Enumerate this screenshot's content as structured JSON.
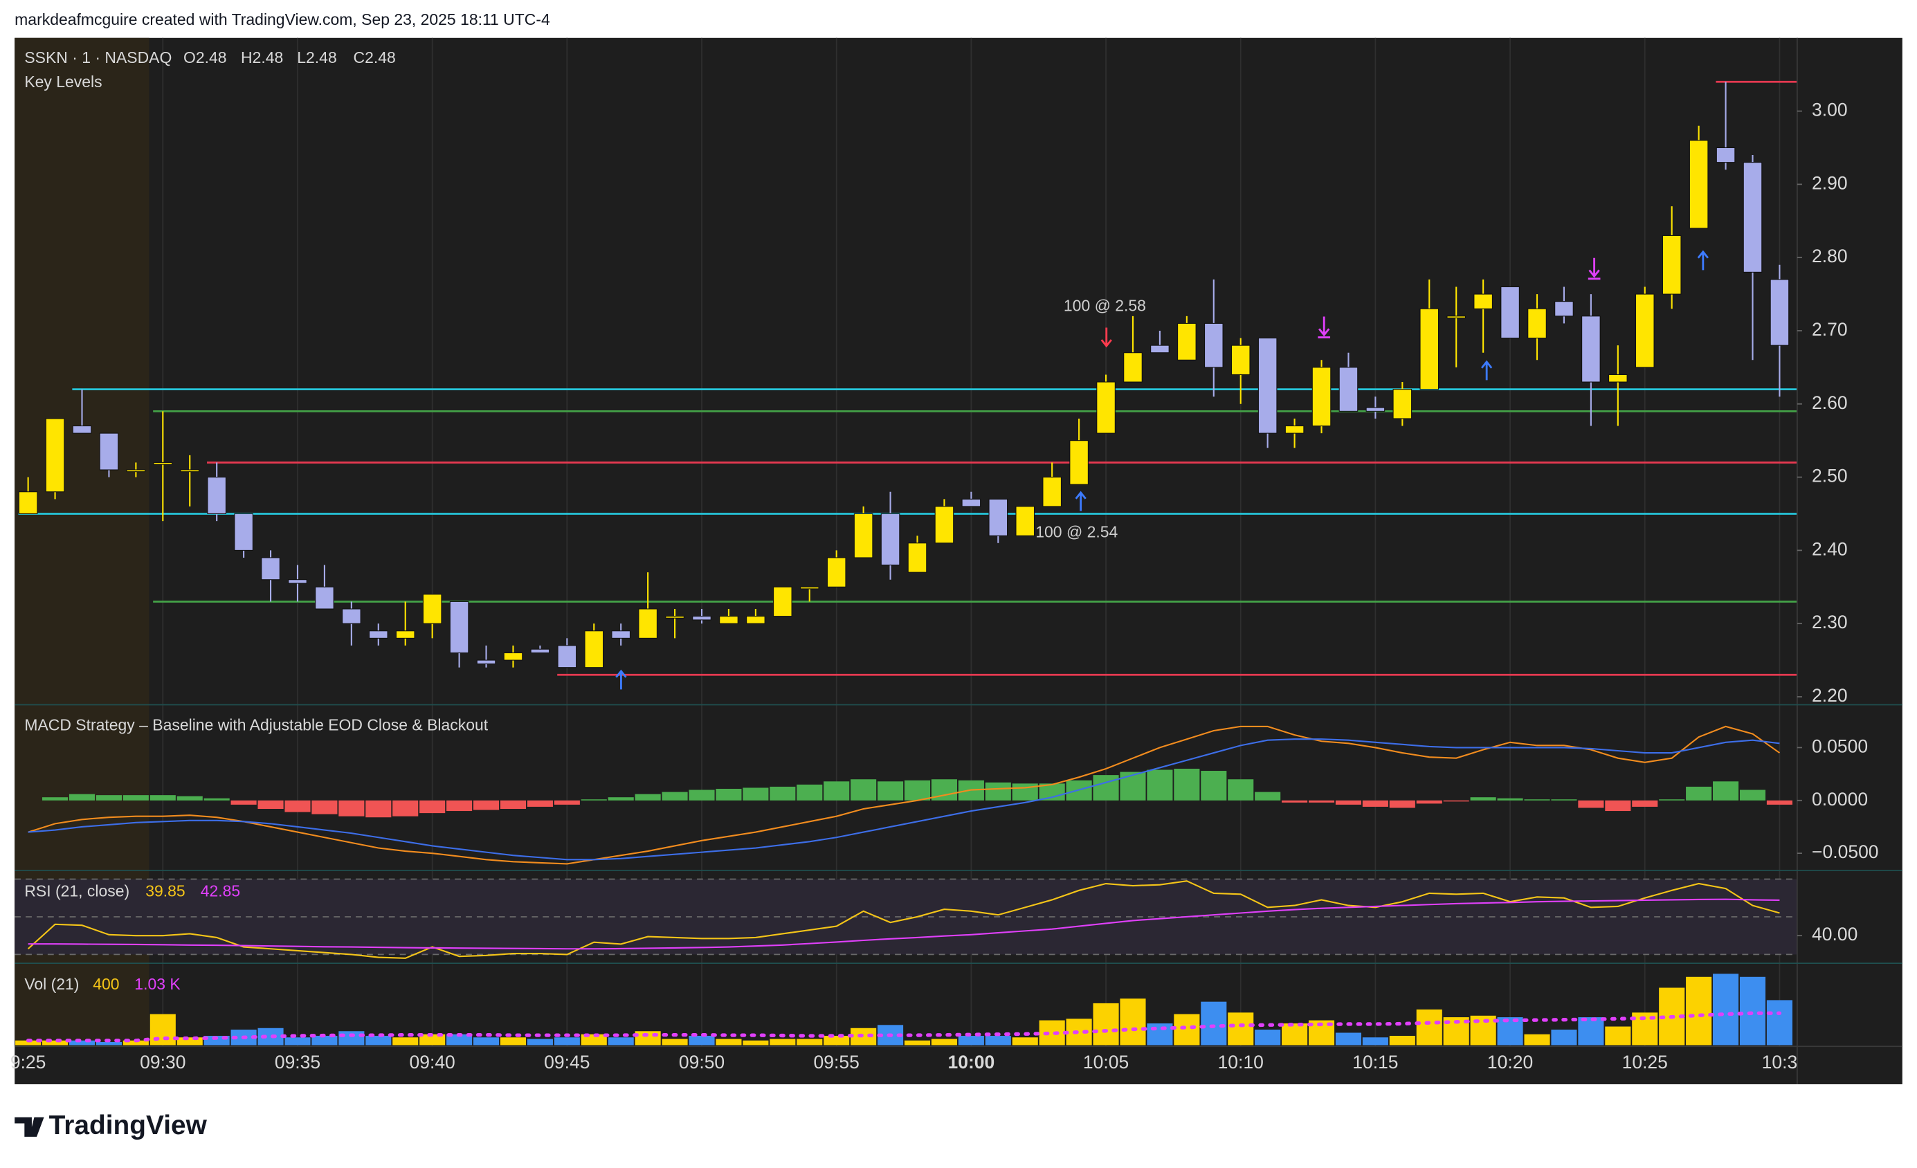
{
  "header": {
    "title": "markdeafmcguire created with TradingView.com, Sep 23, 2025 18:11 UTC-4"
  },
  "brand": "TradingView",
  "chart_data": [
    {
      "type": "candlestick",
      "title": "SSKN · 1 · NASDAQ",
      "legend": [
        "O2.48",
        "H2.48",
        "L2.48",
        "C2.48"
      ],
      "subtitle": "Key Levels",
      "categories": [
        "9:25",
        null,
        null,
        null,
        null,
        "09:30",
        null,
        null,
        null,
        null,
        "09:35",
        null,
        null,
        null,
        null,
        "09:40",
        null,
        null,
        null,
        null,
        "09:45",
        null,
        null,
        null,
        null,
        "09:50",
        null,
        null,
        null,
        null,
        "09:55",
        null,
        null,
        null,
        null,
        "10:00",
        null,
        null,
        null,
        null,
        "10:05",
        null,
        null,
        null,
        null,
        "10:10",
        null,
        null,
        null,
        null,
        "10:15",
        null,
        null,
        null,
        null,
        "10:20",
        null,
        null,
        null,
        null,
        "10:25",
        null,
        null,
        null,
        null,
        "10:3"
      ],
      "ohlc": [
        [
          2.45,
          2.5,
          2.45,
          2.48
        ],
        [
          2.48,
          2.58,
          2.47,
          2.58
        ],
        [
          2.57,
          2.62,
          2.56,
          2.56
        ],
        [
          2.56,
          2.56,
          2.5,
          2.51
        ],
        [
          2.51,
          2.52,
          2.5,
          2.51
        ],
        [
          2.52,
          2.59,
          2.44,
          2.52
        ],
        [
          2.51,
          2.53,
          2.46,
          2.51
        ],
        [
          2.5,
          2.52,
          2.44,
          2.45
        ],
        [
          2.45,
          2.45,
          2.39,
          2.4
        ],
        [
          2.39,
          2.4,
          2.33,
          2.36
        ],
        [
          2.36,
          2.38,
          2.33,
          2.355
        ],
        [
          2.35,
          2.38,
          2.32,
          2.32
        ],
        [
          2.32,
          2.33,
          2.27,
          2.3
        ],
        [
          2.29,
          2.3,
          2.27,
          2.28
        ],
        [
          2.28,
          2.33,
          2.27,
          2.29
        ],
        [
          2.3,
          2.34,
          2.28,
          2.34
        ],
        [
          2.33,
          2.33,
          2.24,
          2.26
        ],
        [
          2.25,
          2.27,
          2.24,
          2.245
        ],
        [
          2.25,
          2.27,
          2.24,
          2.26
        ],
        [
          2.265,
          2.27,
          2.26,
          2.26
        ],
        [
          2.27,
          2.28,
          2.24,
          2.24
        ],
        [
          2.24,
          2.3,
          2.24,
          2.29
        ],
        [
          2.29,
          2.3,
          2.27,
          2.28
        ],
        [
          2.28,
          2.37,
          2.28,
          2.32
        ],
        [
          2.31,
          2.32,
          2.28,
          2.31
        ],
        [
          2.31,
          2.32,
          2.3,
          2.305
        ],
        [
          2.3,
          2.32,
          2.3,
          2.31
        ],
        [
          2.3,
          2.32,
          2.3,
          2.31
        ],
        [
          2.31,
          2.35,
          2.31,
          2.35
        ],
        [
          2.35,
          2.35,
          2.33,
          2.35
        ],
        [
          2.35,
          2.4,
          2.35,
          2.39
        ],
        [
          2.39,
          2.46,
          2.39,
          2.45
        ],
        [
          2.45,
          2.48,
          2.36,
          2.38
        ],
        [
          2.37,
          2.42,
          2.37,
          2.41
        ],
        [
          2.41,
          2.47,
          2.41,
          2.46
        ],
        [
          2.47,
          2.48,
          2.46,
          2.46
        ],
        [
          2.47,
          2.47,
          2.41,
          2.42
        ],
        [
          2.42,
          2.46,
          2.42,
          2.46
        ],
        [
          2.46,
          2.52,
          2.46,
          2.5
        ],
        [
          2.49,
          2.58,
          2.49,
          2.55
        ],
        [
          2.56,
          2.64,
          2.56,
          2.63
        ],
        [
          2.63,
          2.72,
          2.63,
          2.67
        ],
        [
          2.68,
          2.7,
          2.67,
          2.67
        ],
        [
          2.66,
          2.72,
          2.66,
          2.71
        ],
        [
          2.71,
          2.77,
          2.61,
          2.65
        ],
        [
          2.64,
          2.69,
          2.6,
          2.68
        ],
        [
          2.69,
          2.69,
          2.54,
          2.56
        ],
        [
          2.56,
          2.58,
          2.54,
          2.57
        ],
        [
          2.57,
          2.66,
          2.56,
          2.65
        ],
        [
          2.65,
          2.67,
          2.59,
          2.59
        ],
        [
          2.595,
          2.61,
          2.58,
          2.59
        ],
        [
          2.58,
          2.63,
          2.57,
          2.62
        ],
        [
          2.62,
          2.77,
          2.62,
          2.73
        ],
        [
          2.72,
          2.76,
          2.65,
          2.72
        ],
        [
          2.73,
          2.77,
          2.67,
          2.75
        ],
        [
          2.76,
          2.76,
          2.69,
          2.69
        ],
        [
          2.69,
          2.75,
          2.66,
          2.73
        ],
        [
          2.74,
          2.76,
          2.71,
          2.72
        ],
        [
          2.72,
          2.75,
          2.57,
          2.63
        ],
        [
          2.63,
          2.68,
          2.57,
          2.64
        ],
        [
          2.65,
          2.76,
          2.65,
          2.75
        ],
        [
          2.75,
          2.87,
          2.73,
          2.83
        ],
        [
          2.84,
          2.98,
          2.84,
          2.96
        ],
        [
          2.95,
          3.04,
          2.92,
          2.93
        ],
        [
          2.93,
          2.94,
          2.66,
          2.78
        ],
        [
          2.77,
          2.79,
          2.61,
          2.68
        ]
      ],
      "up_color": "#ffe500",
      "down_color": "#a7acea",
      "ylim": [
        2.19,
        3.1
      ],
      "yticks": [
        {
          "value": 2.2,
          "label": "2.20"
        },
        {
          "value": 2.3,
          "label": "2.30"
        },
        {
          "value": 2.4,
          "label": "2.40"
        },
        {
          "value": 2.5,
          "label": "2.50"
        },
        {
          "value": 2.6,
          "label": "2.60"
        },
        {
          "value": 2.7,
          "label": "2.70"
        },
        {
          "value": 2.8,
          "label": "2.80"
        },
        {
          "value": 2.9,
          "label": "2.90"
        },
        {
          "value": 3,
          "label": "3.00"
        }
      ],
      "levels": [
        {
          "value": 2.62,
          "color": "#26c6da",
          "start": 2
        },
        {
          "value": 2.45,
          "color": "#26c6da",
          "start": 0
        },
        {
          "value": 2.59,
          "color": "#43a047",
          "start": 5
        },
        {
          "value": 2.33,
          "color": "#43a047",
          "start": 5
        },
        {
          "value": 2.52,
          "color": "#e53950",
          "start": 7
        },
        {
          "value": 2.23,
          "color": "#e53950",
          "start": 20
        },
        {
          "value": 3.04,
          "color": "#e53950",
          "start": 63
        }
      ],
      "annotations": [
        "100 @ 2.58",
        "100 @ 2.54"
      ],
      "grid": true
    },
    {
      "type": "macd",
      "title": "MACD Strategy – Baseline with Adjustable EOD Close & Blackout",
      "histogram": {
        "up_color": "#4caf50",
        "down_color": "#f05454",
        "values": [
          0,
          0.003,
          0.006,
          0.005,
          0.005,
          0.005,
          0.004,
          0.002,
          -0.004,
          -0.008,
          -0.011,
          -0.013,
          -0.015,
          -0.016,
          -0.015,
          -0.012,
          -0.01,
          -0.009,
          -0.008,
          -0.006,
          -0.004,
          0.001,
          0.003,
          0.006,
          0.008,
          0.01,
          0.011,
          0.012,
          0.013,
          0.015,
          0.018,
          0.02,
          0.018,
          0.019,
          0.02,
          0.019,
          0.017,
          0.016,
          0.016,
          0.019,
          0.024,
          0.027,
          0.029,
          0.03,
          0.028,
          0.02,
          0.008,
          -0.002,
          -0.002,
          -0.004,
          -0.006,
          -0.007,
          -0.003,
          -0.001,
          0.003,
          0.002,
          0.001,
          0.001,
          -0.007,
          -0.01,
          -0.006,
          0.001,
          0.013,
          0.018,
          0.01,
          -0.004
        ]
      },
      "series": [
        {
          "color": "#f28c1e",
          "values": [
            -0.03,
            -0.022,
            -0.018,
            -0.016,
            -0.015,
            -0.015,
            -0.014,
            -0.016,
            -0.02,
            -0.025,
            -0.03,
            -0.035,
            -0.04,
            -0.045,
            -0.048,
            -0.05,
            -0.053,
            -0.056,
            -0.058,
            -0.059,
            -0.06,
            -0.056,
            -0.052,
            -0.048,
            -0.043,
            -0.038,
            -0.034,
            -0.03,
            -0.025,
            -0.02,
            -0.015,
            -0.008,
            -0.004,
            0,
            0.005,
            0.01,
            0.011,
            0.012,
            0.015,
            0.022,
            0.03,
            0.04,
            0.05,
            0.058,
            0.066,
            0.07,
            0.07,
            0.062,
            0.056,
            0.054,
            0.05,
            0.045,
            0.041,
            0.04,
            0.048,
            0.055,
            0.052,
            0.052,
            0.048,
            0.04,
            0.036,
            0.04,
            0.06,
            0.07,
            0.063,
            0.045
          ]
        },
        {
          "color": "#3d6ee8",
          "values": [
            -0.03,
            -0.028,
            -0.025,
            -0.023,
            -0.021,
            -0.02,
            -0.019,
            -0.019,
            -0.02,
            -0.022,
            -0.025,
            -0.028,
            -0.031,
            -0.035,
            -0.039,
            -0.043,
            -0.046,
            -0.049,
            -0.052,
            -0.054,
            -0.056,
            -0.056,
            -0.055,
            -0.053,
            -0.051,
            -0.049,
            -0.047,
            -0.045,
            -0.042,
            -0.039,
            -0.035,
            -0.03,
            -0.025,
            -0.02,
            -0.015,
            -0.01,
            -0.006,
            -0.002,
            0.003,
            0.01,
            0.017,
            0.024,
            0.031,
            0.038,
            0.045,
            0.052,
            0.057,
            0.058,
            0.058,
            0.057,
            0.055,
            0.053,
            0.051,
            0.05,
            0.05,
            0.05,
            0.05,
            0.05,
            0.049,
            0.047,
            0.045,
            0.045,
            0.05,
            0.055,
            0.057,
            0.054
          ]
        }
      ],
      "ylim": [
        -0.065,
        0.09
      ],
      "yticks": [
        {
          "value": 0.05,
          "label": "0.0500"
        },
        {
          "value": 0,
          "label": "0.0000"
        },
        {
          "value": -0.05,
          "label": "−0.0500"
        }
      ]
    },
    {
      "type": "rsi",
      "title": "RSI (21, close)",
      "legend": [
        "39.85",
        "42.85"
      ],
      "band_color": "#2b2733",
      "bands": [
        30,
        50,
        70
      ],
      "series": [
        {
          "color": "#f5c518",
          "values": [
            33,
            46,
            45.5,
            40.5,
            40,
            40,
            41,
            39,
            34,
            33,
            32,
            31,
            30,
            28.5,
            28,
            34,
            29,
            29.5,
            30.5,
            30.5,
            30,
            36.5,
            35.5,
            39.5,
            39,
            38.5,
            38.5,
            39,
            41,
            43,
            45,
            53,
            47,
            50,
            54,
            53,
            51,
            55,
            59,
            64,
            67.6,
            66.5,
            67,
            69,
            62.5,
            62,
            55,
            56,
            59,
            56,
            55,
            58,
            62.5,
            62,
            62.5,
            58,
            60.5,
            60,
            55,
            55.5,
            60,
            64,
            67.6,
            65,
            56,
            52
          ]
        },
        {
          "color": "#e040fb",
          "values": [
            35.6,
            35.6,
            35.5,
            35.4,
            35.3,
            35.2,
            35,
            34.9,
            34.7,
            34.5,
            34.3,
            34.1,
            34,
            33.8,
            33.6,
            33.5,
            33.4,
            33.3,
            33.2,
            33.1,
            33,
            33,
            33.1,
            33.3,
            33.5,
            33.7,
            34,
            34.5,
            35,
            35.8,
            36.6,
            37.5,
            38.3,
            39,
            39.8,
            40.5,
            41.5,
            42.5,
            43.5,
            45,
            46.5,
            48,
            49,
            50,
            51,
            52,
            53,
            53.8,
            54.5,
            55,
            55.5,
            56,
            56.5,
            57,
            57.3,
            57.6,
            58,
            58.2,
            58.4,
            58.6,
            58.8,
            59,
            59.2,
            59.3,
            59,
            58.8
          ]
        }
      ],
      "ylim": [
        26,
        74
      ],
      "yticks": [
        {
          "value": 40,
          "label": "40.00"
        }
      ]
    },
    {
      "type": "volume",
      "title": "Vol (21)",
      "legend": [
        "400",
        "1.03 K"
      ],
      "up_color": "#fcd200",
      "down_color": "#3d8ef0",
      "values": [
        150,
        150,
        150,
        100,
        150,
        1000,
        250,
        300,
        500,
        550,
        250,
        300,
        450,
        300,
        250,
        350,
        350,
        250,
        250,
        200,
        250,
        350,
        250,
        450,
        200,
        300,
        200,
        150,
        200,
        200,
        300,
        550,
        650,
        150,
        200,
        300,
        300,
        250,
        800,
        850,
        1350,
        1500,
        700,
        1000,
        1400,
        1050,
        500,
        700,
        800,
        400,
        250,
        300,
        1150,
        900,
        950,
        900,
        350,
        500,
        900,
        600,
        1050,
        1850,
        2200,
        2300,
        2200,
        1450
      ],
      "ma": {
        "color": "#e040fb",
        "values": [
          150,
          150,
          150,
          150,
          150,
          220,
          220,
          230,
          250,
          280,
          300,
          310,
          320,
          320,
          330,
          330,
          330,
          330,
          320,
          320,
          320,
          320,
          320,
          330,
          330,
          330,
          320,
          320,
          310,
          300,
          300,
          310,
          320,
          320,
          330,
          340,
          350,
          360,
          380,
          420,
          460,
          510,
          540,
          570,
          610,
          640,
          650,
          660,
          670,
          680,
          680,
          690,
          720,
          750,
          780,
          800,
          810,
          820,
          830,
          850,
          870,
          910,
          960,
          1000,
          1030,
          1030
        ]
      },
      "ylim": [
        0,
        2600
      ]
    }
  ]
}
